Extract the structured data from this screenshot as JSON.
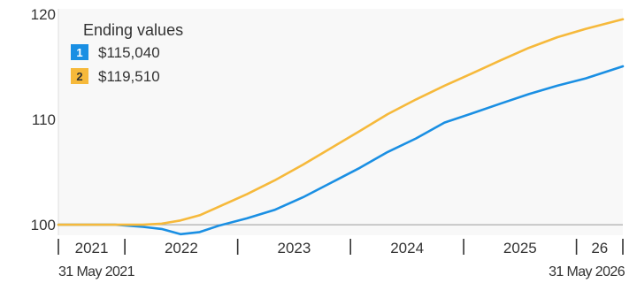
{
  "chart_data": {
    "type": "line",
    "ylim": [
      99,
      120.5
    ],
    "y_ticks": [
      100,
      110,
      120
    ],
    "baseline": 100,
    "grid": false,
    "legend": {
      "title": "Ending values",
      "placement": "top-left",
      "entries": [
        {
          "badge": "1",
          "value": "$115,040",
          "color": "#1a8fe3",
          "text_color": "#ffffff"
        },
        {
          "badge": "2",
          "value": "$119,510",
          "color": "#f6b93b",
          "text_color": "#333333"
        }
      ]
    },
    "x_range": [
      "2021-05-31",
      "2026-05-31"
    ],
    "x_axis_labels": [
      "2021",
      "2022",
      "2023",
      "2024",
      "2025",
      "26"
    ],
    "start_date_label": "31 May 2021",
    "end_date_label": "31 May 2026",
    "series": [
      {
        "badge": "1",
        "color": "#1a8fe3",
        "x": [
          "2021-05-31",
          "2021-08-31",
          "2021-11-30",
          "2022-02-28",
          "2022-04-30",
          "2022-06-30",
          "2022-08-31",
          "2022-10-31",
          "2023-01-31",
          "2023-04-30",
          "2023-07-31",
          "2023-10-31",
          "2024-01-31",
          "2024-04-30",
          "2024-07-31",
          "2024-10-31",
          "2025-01-31",
          "2025-04-30",
          "2025-07-31",
          "2025-10-31",
          "2026-01-31",
          "2026-05-31"
        ],
        "values": [
          100.0,
          100.0,
          100.0,
          99.8,
          99.6,
          99.1,
          99.3,
          99.9,
          100.6,
          101.4,
          102.6,
          104.0,
          105.4,
          106.9,
          108.2,
          109.7,
          110.6,
          111.5,
          112.4,
          113.2,
          113.9,
          115.04
        ]
      },
      {
        "badge": "2",
        "color": "#f6b93b",
        "x": [
          "2021-05-31",
          "2021-08-31",
          "2021-11-30",
          "2022-02-28",
          "2022-04-30",
          "2022-06-30",
          "2022-08-31",
          "2022-10-31",
          "2023-01-31",
          "2023-04-30",
          "2023-07-31",
          "2023-10-31",
          "2024-01-31",
          "2024-04-30",
          "2024-07-31",
          "2024-10-31",
          "2025-01-31",
          "2025-04-30",
          "2025-07-31",
          "2025-10-31",
          "2026-01-31",
          "2026-05-31"
        ],
        "values": [
          100.0,
          100.0,
          100.0,
          100.0,
          100.1,
          100.4,
          100.9,
          101.7,
          102.9,
          104.2,
          105.7,
          107.3,
          108.9,
          110.5,
          111.9,
          113.2,
          114.4,
          115.6,
          116.8,
          117.8,
          118.6,
          119.51
        ]
      }
    ]
  }
}
